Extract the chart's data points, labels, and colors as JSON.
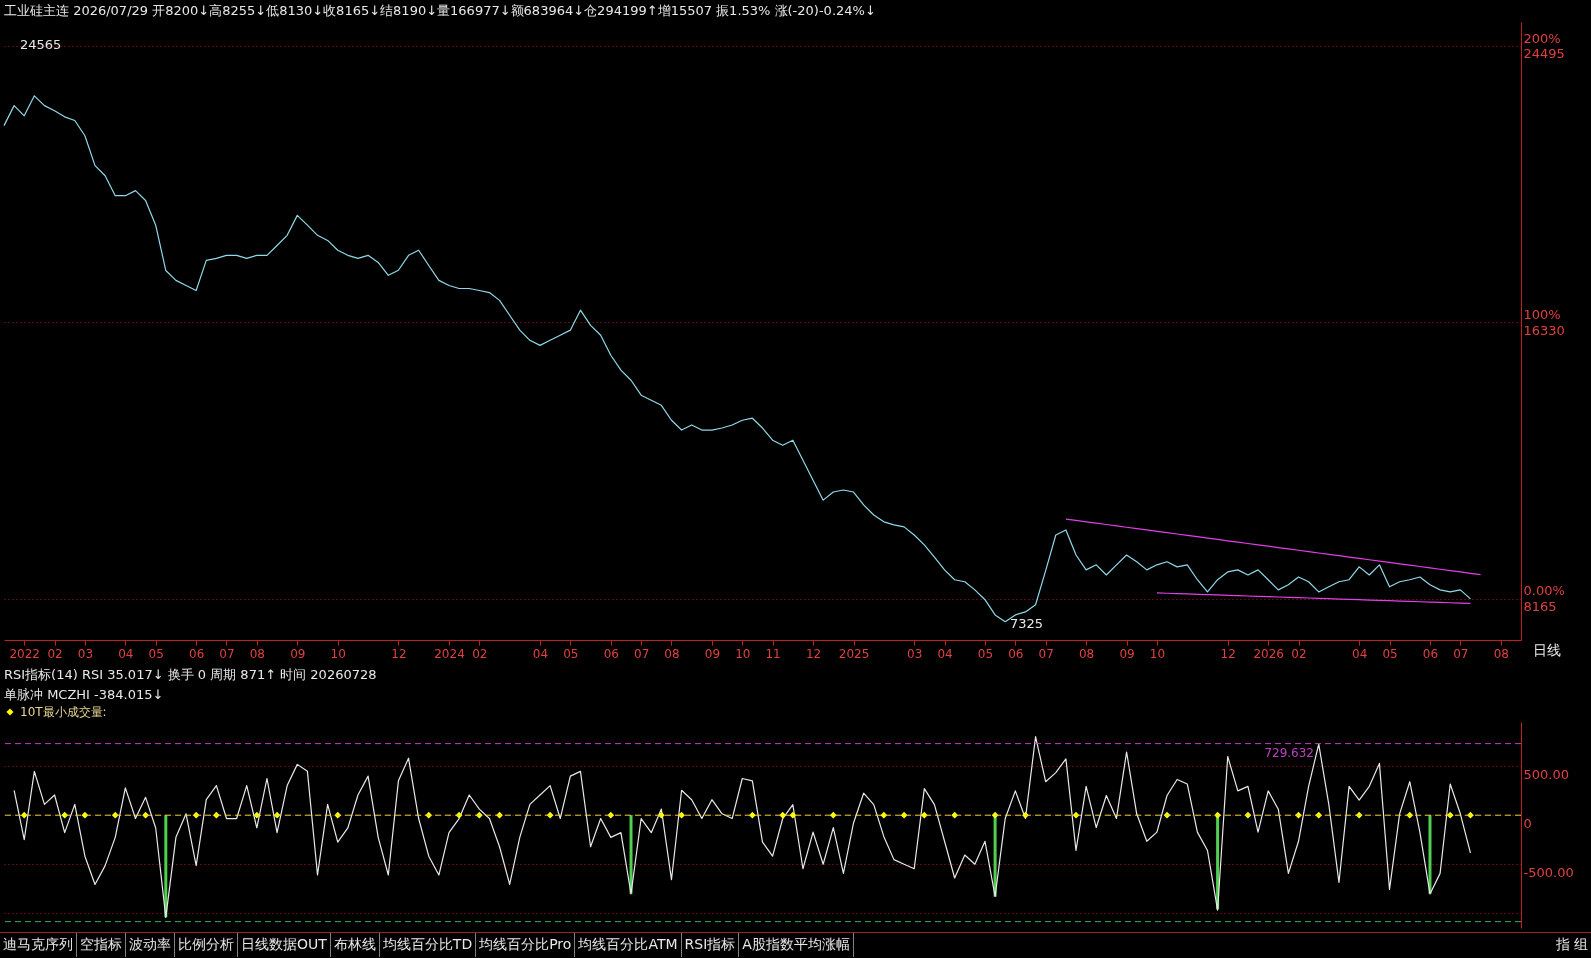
{
  "chart_data": [
    {
      "type": "line",
      "title": "工业硅主连 2026/07/29 开8200↓高8255↓低8130↓收8165↓结8190↓量166977↓额683964↓仓294199↑增15507 振1.53% 涨(-20)-0.24%↓",
      "xlabel": "日线",
      "categories": [
        null,
        null,
        "2022",
        null,
        null,
        "02",
        null,
        null,
        "03",
        null,
        null,
        null,
        "04",
        null,
        null,
        "05",
        null,
        null,
        null,
        "06",
        null,
        null,
        "07",
        null,
        null,
        "08",
        null,
        null,
        null,
        "09",
        null,
        null,
        null,
        "10",
        null,
        null,
        null,
        null,
        null,
        "12",
        null,
        null,
        null,
        null,
        "2024",
        null,
        null,
        "02",
        null,
        null,
        null,
        null,
        null,
        "04",
        null,
        null,
        "05",
        null,
        null,
        null,
        "06",
        null,
        null,
        "07",
        null,
        null,
        "08",
        null,
        null,
        null,
        "09",
        null,
        null,
        "10",
        null,
        null,
        "11",
        null,
        null,
        null,
        "12",
        null,
        null,
        null,
        "2025",
        null,
        null,
        null,
        null,
        null,
        "03",
        null,
        null,
        "04",
        null,
        null,
        null,
        "05",
        null,
        null,
        "06",
        null,
        null,
        "07",
        null,
        null,
        null,
        "08",
        null,
        null,
        null,
        "09",
        null,
        null,
        "10",
        null,
        null,
        null,
        null,
        null,
        null,
        "12",
        null,
        null,
        null,
        "2026",
        null,
        null,
        "02",
        null,
        null,
        null,
        null,
        null,
        "04",
        null,
        null,
        "05",
        null,
        null,
        null,
        "06",
        null,
        null,
        "07",
        null,
        null,
        null,
        "08",
        null,
        null
      ],
      "ylim": [
        6950,
        25200
      ],
      "yticks": [
        8165,
        16330,
        24495
      ],
      "y2lim": [
        -15,
        209
      ],
      "y2ticks": [
        {
          "value": 0,
          "label": "0.00%"
        },
        {
          "value": 100,
          "label": "100%"
        },
        {
          "value": 200,
          "label": "200%"
        }
      ],
      "grid": "y",
      "annotations": [
        "24565",
        "7325"
      ],
      "series": [
        {
          "color": "#8fd8e8",
          "values": [
            22140,
            22730,
            22430,
            23020,
            22730,
            22580,
            22400,
            22290,
            21840,
            20960,
            20660,
            20070,
            20070,
            20220,
            19930,
            19200,
            17860,
            17570,
            17420,
            17270,
            18160,
            18220,
            18310,
            18310,
            18220,
            18310,
            18310,
            18600,
            18900,
            19490,
            19200,
            18900,
            18750,
            18460,
            18310,
            18220,
            18310,
            18100,
            17720,
            17870,
            18310,
            18460,
            18010,
            17570,
            17420,
            17330,
            17330,
            17270,
            17210,
            16980,
            16540,
            16100,
            15800,
            15650,
            15800,
            15950,
            16100,
            16690,
            16240,
            15950,
            15360,
            14920,
            14620,
            14180,
            14030,
            13880,
            13440,
            13150,
            13300,
            13150,
            13150,
            13210,
            13300,
            13440,
            13500,
            13210,
            12850,
            12700,
            12850,
            12260,
            11670,
            11080,
            11320,
            11380,
            11320,
            10940,
            10640,
            10440,
            10350,
            10290,
            10050,
            9760,
            9400,
            9020,
            8730,
            8670,
            8430,
            8140,
            7690,
            7490,
            7690,
            7780,
            7990,
            9000,
            10050,
            10200,
            9460,
            9020,
            9170,
            8870,
            9170,
            9460,
            9260,
            9020,
            9170,
            9260,
            9110,
            9170,
            8730,
            8370,
            8730,
            8960,
            9020,
            8870,
            9020,
            8730,
            8430,
            8580,
            8810,
            8670,
            8370,
            8520,
            8670,
            8730,
            9110,
            8870,
            9170,
            8520,
            8670,
            8730,
            8810,
            8580,
            8430,
            8370,
            8430,
            8165,
            null,
            null,
            null,
            null,
            null
          ]
        },
        {
          "color": "#e040e8",
          "values": [
            null,
            null,
            null,
            null,
            null,
            null,
            null,
            null,
            null,
            null,
            null,
            null,
            null,
            null,
            null,
            null,
            null,
            null,
            null,
            null,
            null,
            null,
            null,
            null,
            null,
            null,
            null,
            null,
            null,
            null,
            null,
            null,
            null,
            null,
            null,
            null,
            null,
            null,
            null,
            null,
            null,
            null,
            null,
            null,
            null,
            null,
            null,
            null,
            null,
            null,
            null,
            null,
            null,
            null,
            null,
            null,
            null,
            null,
            null,
            null,
            null,
            null,
            null,
            null,
            null,
            null,
            null,
            null,
            null,
            null,
            null,
            null,
            null,
            null,
            null,
            null,
            null,
            null,
            null,
            null,
            null,
            null,
            null,
            null,
            null,
            null,
            null,
            null,
            null,
            null,
            null,
            null,
            null,
            null,
            null,
            null,
            null,
            null,
            null,
            null,
            null,
            null,
            null,
            null,
            null,
            10520,
            10480,
            10440,
            10400,
            10360,
            10320,
            10280,
            10240,
            10200,
            10160,
            10120,
            10080,
            10040,
            10000,
            9960,
            9920,
            9880,
            9840,
            9800,
            9760,
            9720,
            9680,
            9640,
            9600,
            9560,
            9520,
            9480,
            9440,
            9400,
            9360,
            9320,
            9280,
            9240,
            9200,
            9160,
            9120,
            9080,
            9040,
            9000,
            8960,
            8920,
            8880,
            null,
            null,
            null,
            null
          ]
        },
        {
          "color": "#e040e8",
          "values": [
            null,
            null,
            null,
            null,
            null,
            null,
            null,
            null,
            null,
            null,
            null,
            null,
            null,
            null,
            null,
            null,
            null,
            null,
            null,
            null,
            null,
            null,
            null,
            null,
            null,
            null,
            null,
            null,
            null,
            null,
            null,
            null,
            null,
            null,
            null,
            null,
            null,
            null,
            null,
            null,
            null,
            null,
            null,
            null,
            null,
            null,
            null,
            null,
            null,
            null,
            null,
            null,
            null,
            null,
            null,
            null,
            null,
            null,
            null,
            null,
            null,
            null,
            null,
            null,
            null,
            null,
            null,
            null,
            null,
            null,
            null,
            null,
            null,
            null,
            null,
            null,
            null,
            null,
            null,
            null,
            null,
            null,
            null,
            null,
            null,
            null,
            null,
            null,
            null,
            null,
            null,
            null,
            null,
            null,
            null,
            null,
            null,
            null,
            null,
            null,
            null,
            null,
            null,
            null,
            null,
            null,
            null,
            null,
            null,
            null,
            null,
            null,
            null,
            null,
            8340,
            8330,
            8320,
            8310,
            8300,
            8290,
            8280,
            8270,
            8260,
            8250,
            8240,
            8230,
            8220,
            8210,
            8200,
            8190,
            8180,
            8170,
            8160,
            8150,
            8140,
            8130,
            8120,
            8110,
            8100,
            8090,
            8080,
            8070,
            8060,
            8050,
            8040,
            8030,
            null,
            null,
            null,
            null,
            null
          ]
        }
      ]
    },
    {
      "type": "line",
      "title": "RSI指标(14)  RSI 35.017↓ 换手 0 周期 871↑ 时间 20260728",
      "subtitle": "单脉冲   MCZHI -384.015↓",
      "categories": [
        null,
        null,
        "2022",
        null,
        null,
        "02",
        null,
        null,
        "03",
        null,
        null,
        null,
        "04",
        null,
        null,
        "05",
        null,
        null,
        null,
        "06",
        null,
        null,
        "07",
        null,
        null,
        "08",
        null,
        null,
        null,
        "09",
        null,
        null,
        null,
        "10",
        null,
        null,
        null,
        null,
        null,
        "12",
        null,
        null,
        null,
        null,
        "2024",
        null,
        null,
        "02",
        null,
        null,
        null,
        null,
        null,
        "04",
        null,
        null,
        "05",
        null,
        null,
        null,
        "06",
        null,
        null,
        "07",
        null,
        null,
        "08",
        null,
        null,
        null,
        "09",
        null,
        null,
        "10",
        null,
        null,
        "11",
        null,
        null,
        null,
        "12",
        null,
        null,
        null,
        "2025",
        null,
        null,
        null,
        null,
        null,
        "03",
        null,
        null,
        "04",
        null,
        null,
        null,
        "05",
        null,
        null,
        "06",
        null,
        null,
        "07",
        null,
        null,
        null,
        "08",
        null,
        null,
        null,
        "09",
        null,
        null,
        "10",
        null,
        null,
        null,
        null,
        null,
        null,
        "12",
        null,
        null,
        null,
        "2026",
        null,
        null,
        "02",
        null,
        null,
        null,
        null,
        null,
        "04",
        null,
        null,
        "05",
        null,
        null,
        null,
        "06",
        null,
        null,
        "07",
        null,
        null,
        null,
        "08",
        null,
        null
      ],
      "tick_labels": "y",
      "ylim": [
        -1150,
        950
      ],
      "yticks": [
        {
          "value": 500,
          "label": "500.00"
        },
        0,
        {
          "value": -500,
          "label": "-500.00"
        },
        {
          "value": -1000,
          "label": null
        }
      ],
      "grid": "y",
      "legend": "top left",
      "ref_lines": [
        {
          "axis": "y",
          "value": 0,
          "color": "#d8d840",
          "line_style": "dashed"
        },
        {
          "axis": "y",
          "value": 729.632,
          "label": "729.632",
          "color": "#c040c0",
          "line_style": "dashed"
        },
        {
          "axis": "y",
          "value": -1085,
          "color": "#30b050",
          "line_style": "dashed"
        }
      ],
      "annotations": [
        "迪马克序列",
        "空指标",
        "波动率",
        "比例分析",
        "日线数据OUT",
        "布林线",
        "均线百分比TD",
        "均线百分比Pro",
        "均线百分比ATM",
        "RSI指标",
        "A股指数平均涨幅",
        "指 组"
      ],
      "series": [
        {
          "color": "#e8e8e8",
          "values": [
            null,
            254,
            -250,
            447,
            110,
            206,
            -178,
            110,
            -418,
            -706,
            -514,
            -226,
            278,
            -34,
            182,
            -130,
            -1042,
            -226,
            14,
            -514,
            158,
            302,
            -34,
            -34,
            302,
            -130,
            374,
            -178,
            302,
            518,
            447,
            -610,
            110,
            -274,
            -130,
            206,
            398,
            -226,
            -610,
            350,
            581,
            -34,
            -418,
            -610,
            -178,
            -34,
            206,
            62,
            -34,
            -322,
            -706,
            -226,
            110,
            206,
            302,
            -34,
            398,
            447,
            -322,
            -34,
            -226,
            -178,
            -802,
            -34,
            -178,
            62,
            -658,
            254,
            158,
            -34,
            158,
            14,
            -34,
            374,
            350,
            -274,
            -418,
            -34,
            107,
            -546,
            -173,
            -500,
            -126,
            -593,
            -79,
            224,
            107,
            -219,
            -453,
            -500,
            -546,
            271,
            107,
            -266,
            -640,
            -406,
            -500,
            -266,
            -827,
            -33,
            248,
            -33,
            800,
            341,
            434,
            574,
            -360,
            294,
            -126,
            201,
            -33,
            644,
            14,
            -266,
            -173,
            201,
            364,
            318,
            -173,
            -360,
            -967,
            598,
            248,
            294,
            -173,
            248,
            61,
            -593,
            -266,
            294,
            724,
            107,
            -686,
            294,
            154,
            294,
            528,
            -757,
            14,
            341,
            -173,
            -803,
            -593,
            318,
            14,
            -384,
            null,
            null,
            null,
            null,
            null
          ]
        },
        {
          "type": "bar",
          "color": "#50d050",
          "values": [
            null,
            null,
            null,
            null,
            null,
            null,
            null,
            null,
            null,
            null,
            null,
            null,
            null,
            null,
            null,
            null,
            -1040,
            null,
            null,
            null,
            null,
            null,
            null,
            null,
            null,
            null,
            null,
            null,
            null,
            null,
            null,
            null,
            null,
            null,
            null,
            null,
            null,
            null,
            null,
            null,
            null,
            null,
            null,
            null,
            null,
            null,
            null,
            null,
            null,
            null,
            null,
            null,
            null,
            null,
            null,
            null,
            null,
            null,
            null,
            null,
            null,
            null,
            -800,
            null,
            null,
            null,
            null,
            null,
            null,
            null,
            null,
            null,
            null,
            null,
            null,
            null,
            null,
            null,
            null,
            null,
            null,
            null,
            null,
            null,
            null,
            null,
            null,
            null,
            null,
            null,
            null,
            null,
            null,
            null,
            null,
            null,
            null,
            null,
            -830,
            null,
            null,
            null,
            null,
            null,
            null,
            null,
            null,
            null,
            null,
            null,
            null,
            null,
            null,
            null,
            null,
            null,
            null,
            null,
            null,
            null,
            -960,
            null,
            null,
            null,
            null,
            null,
            null,
            null,
            null,
            null,
            null,
            null,
            null,
            null,
            null,
            null,
            null,
            null,
            null,
            null,
            null,
            -800,
            null,
            null,
            null,
            null,
            null,
            null,
            null,
            null,
            null
          ]
        },
        {
          "type": "scatter",
          "name": "10T最小成交量:",
          "marker": "diamond",
          "color": "#ffff00",
          "values": [
            null,
            null,
            0,
            null,
            null,
            null,
            0,
            null,
            0,
            null,
            null,
            0,
            null,
            null,
            0,
            null,
            null,
            null,
            null,
            0,
            null,
            0,
            null,
            null,
            null,
            0,
            null,
            0,
            null,
            null,
            null,
            null,
            null,
            0,
            null,
            null,
            null,
            null,
            null,
            null,
            null,
            null,
            0,
            null,
            null,
            0,
            null,
            0,
            null,
            0,
            null,
            null,
            null,
            null,
            0,
            null,
            null,
            null,
            null,
            null,
            0,
            null,
            null,
            null,
            null,
            0,
            null,
            0,
            null,
            null,
            null,
            null,
            null,
            null,
            0,
            null,
            null,
            0,
            0,
            null,
            null,
            null,
            0,
            null,
            null,
            null,
            null,
            0,
            null,
            0,
            null,
            0,
            null,
            null,
            0,
            null,
            null,
            null,
            0,
            null,
            null,
            0,
            null,
            null,
            null,
            null,
            0,
            null,
            null,
            null,
            null,
            null,
            null,
            null,
            null,
            0,
            null,
            null,
            null,
            null,
            0,
            null,
            null,
            0,
            null,
            null,
            null,
            null,
            0,
            null,
            0,
            null,
            null,
            null,
            0,
            null,
            null,
            null,
            null,
            0,
            null,
            null,
            null,
            0,
            null,
            0,
            null,
            null,
            null,
            null,
            null
          ]
        }
      ]
    }
  ]
}
